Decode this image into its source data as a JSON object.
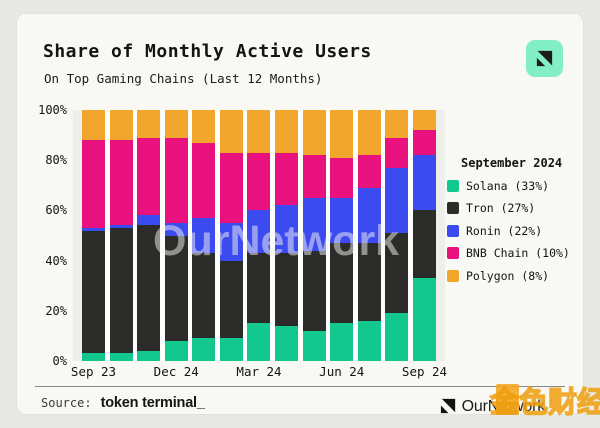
{
  "header": {
    "title": "Share of Monthly Active Users",
    "subtitle": "On Top Gaming Chains (Last 12 Months)"
  },
  "branding": {
    "corner_icon": "ournetwork-mark-icon",
    "corner_icon_bg": "#82EFC6",
    "footer_logo_text": "OurNetwork",
    "watermark_center": "OurNetwork",
    "watermark_stamp": "金色财经",
    "watermark_stamp_color": "#F5A623"
  },
  "footer": {
    "source_label": "Source:",
    "source_name": "token terminal_"
  },
  "legend": {
    "title": "September 2024",
    "items": [
      {
        "label": "Solana (33%)",
        "color": "#12C88F"
      },
      {
        "label": "Tron (27%)",
        "color": "#2B2B29"
      },
      {
        "label": "Ronin (22%)",
        "color": "#3C4BEF"
      },
      {
        "label": "BNB Chain (10%)",
        "color": "#E8117E"
      },
      {
        "label": "Polygon (8%)",
        "color": "#F3A62E"
      }
    ]
  },
  "chart_data": {
    "type": "bar",
    "stacked": true,
    "title": "Share of Monthly Active Users",
    "subtitle": "On Top Gaming Chains (Last 12 Months)",
    "xlabel": "",
    "ylabel": "",
    "ylim": [
      0,
      100
    ],
    "grid": false,
    "legend_position": "right",
    "bar_count": 13,
    "y_ticks": [
      {
        "v": 0,
        "label": "0%"
      },
      {
        "v": 20,
        "label": "20%"
      },
      {
        "v": 40,
        "label": "40%"
      },
      {
        "v": 60,
        "label": "60%"
      },
      {
        "v": 80,
        "label": "80%"
      },
      {
        "v": 100,
        "label": "100%"
      }
    ],
    "x_ticks": [
      {
        "bar": 1,
        "label": "Sep 23"
      },
      {
        "bar": 4,
        "label": "Dec 24"
      },
      {
        "bar": 7,
        "label": "Mar 24"
      },
      {
        "bar": 10,
        "label": "Jun 24"
      },
      {
        "bar": 13,
        "label": "Sep 24"
      }
    ],
    "series": [
      {
        "name": "Solana",
        "color": "#12C88F",
        "values": [
          3,
          3,
          4,
          8,
          9,
          9,
          15,
          14,
          12,
          15,
          16,
          19,
          33
        ]
      },
      {
        "name": "Tron",
        "color": "#2B2B29",
        "values": [
          49,
          50,
          50,
          42,
          34,
          31,
          28,
          29,
          32,
          32,
          31,
          32,
          27
        ]
      },
      {
        "name": "Ronin",
        "color": "#3C4BEF",
        "values": [
          1,
          1,
          4,
          5,
          14,
          15,
          17,
          19,
          21,
          18,
          22,
          26,
          22
        ]
      },
      {
        "name": "BNB Chain",
        "color": "#E8117E",
        "values": [
          35,
          34,
          31,
          34,
          30,
          28,
          23,
          21,
          17,
          16,
          13,
          12,
          10
        ]
      },
      {
        "name": "Polygon",
        "color": "#F3A62E",
        "values": [
          12,
          12,
          11,
          11,
          13,
          17,
          17,
          17,
          18,
          19,
          18,
          11,
          8
        ]
      }
    ]
  }
}
